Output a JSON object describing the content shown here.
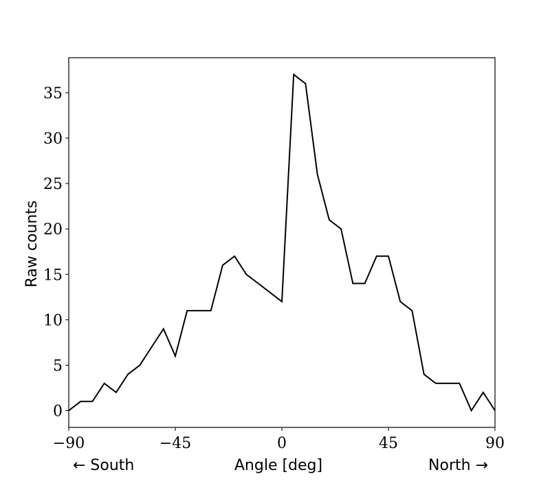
{
  "chart_data": {
    "type": "line",
    "title": "",
    "xlabel": "Angle [deg]",
    "ylabel": "Raw counts",
    "x_annotations": {
      "left": "← South",
      "right": "North →"
    },
    "xlim": [
      -90,
      90
    ],
    "ylim": [
      -1.85,
      38.85
    ],
    "xticks": [
      -90,
      -45,
      0,
      45,
      90
    ],
    "xtick_labels": [
      "−90",
      "−45",
      "0",
      "45",
      "90"
    ],
    "yticks": [
      0,
      5,
      10,
      15,
      20,
      25,
      30,
      35
    ],
    "ytick_labels": [
      "0",
      "5",
      "10",
      "15",
      "20",
      "25",
      "30",
      "35"
    ],
    "grid": false,
    "legend": null,
    "series": [
      {
        "name": "Raw counts",
        "color": "#000000",
        "x": [
          -90,
          -85,
          -80,
          -75,
          -70,
          -65,
          -60,
          -55,
          -50,
          -45,
          -40,
          -35,
          -30,
          -25,
          -20,
          -15,
          -10,
          -5,
          0,
          5,
          10,
          15,
          20,
          25,
          30,
          35,
          40,
          45,
          50,
          55,
          60,
          65,
          70,
          75,
          80,
          85,
          90
        ],
        "values": [
          0,
          1,
          1,
          3,
          2,
          4,
          5,
          7,
          9,
          6,
          11,
          11,
          11,
          16,
          17,
          15,
          14,
          13,
          12,
          37,
          36,
          26,
          21,
          20,
          14,
          14,
          17,
          17,
          12,
          11,
          4,
          3,
          3,
          3,
          0,
          2,
          0
        ]
      }
    ]
  }
}
